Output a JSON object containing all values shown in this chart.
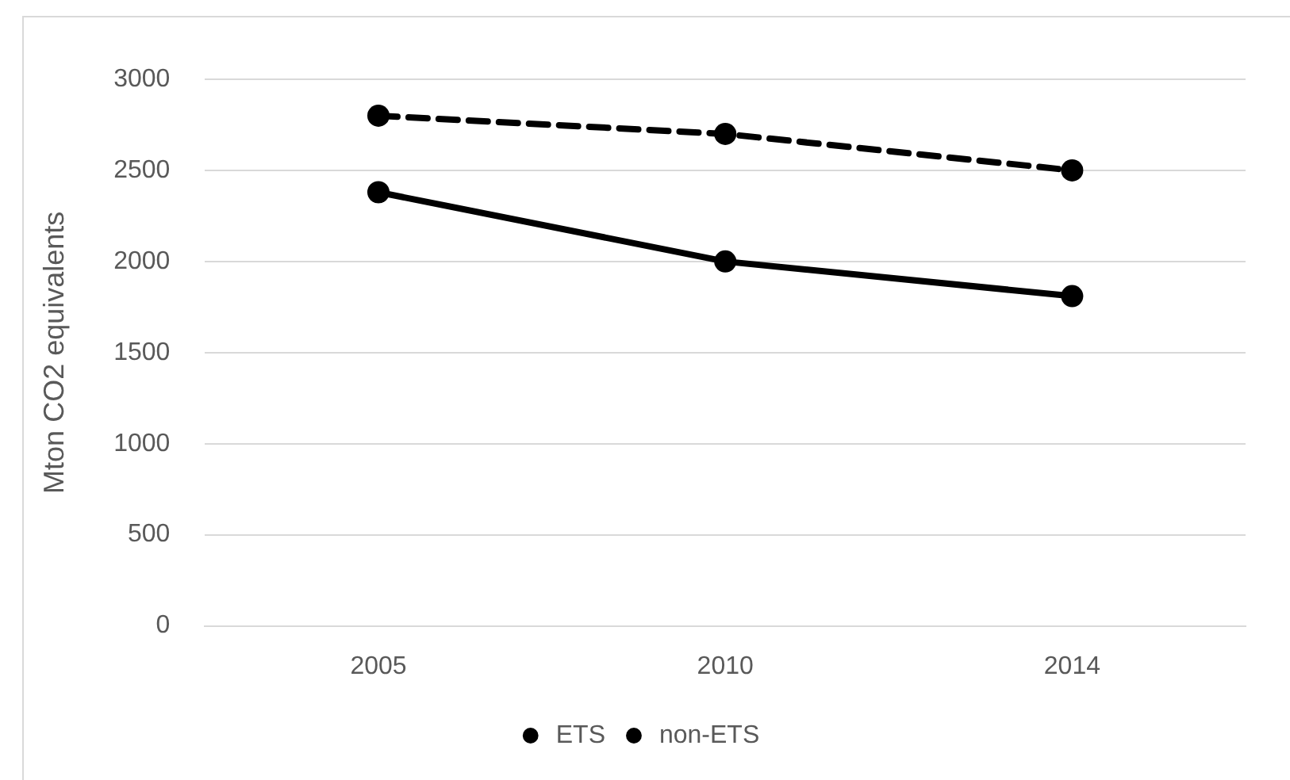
{
  "chart_data": {
    "type": "line",
    "ylabel": "Mton CO2 equivalents",
    "categories": [
      "2005",
      "2010",
      "2014"
    ],
    "series": [
      {
        "name": "ETS",
        "color": "#000000",
        "values": [
          2380,
          2000,
          1810
        ],
        "line_style": "solid"
      },
      {
        "name": "non-ETS",
        "color": "#000000",
        "values": [
          2800,
          2700,
          2500
        ],
        "line_style": "dashed"
      }
    ],
    "ylim": [
      0,
      3000
    ],
    "yticks": [
      0,
      500,
      1000,
      1500,
      2000,
      2500,
      3000
    ],
    "grid": "y",
    "legend": "bottom",
    "marker": "circle"
  }
}
